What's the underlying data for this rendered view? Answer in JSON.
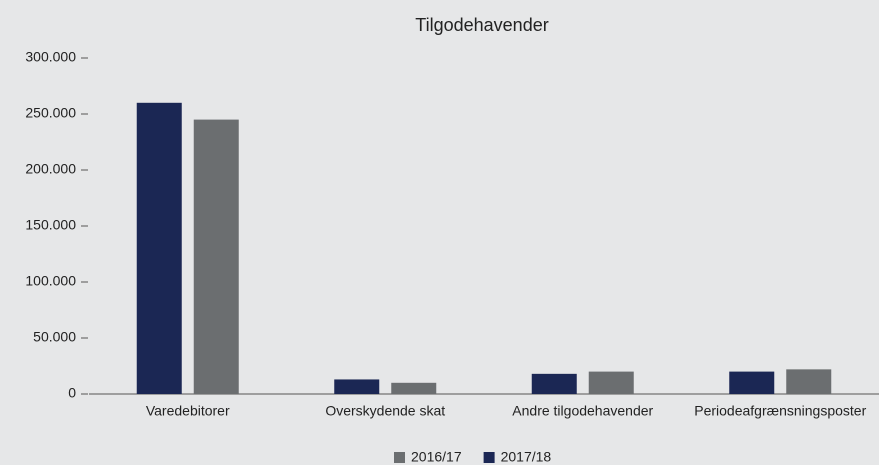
{
  "chart_data": {
    "type": "bar",
    "title": "Tilgodehavender",
    "categories": [
      "Varedebitorer",
      "Overskydende skat",
      "Andre tilgodehavender",
      "Periodeafgrænsningsposter"
    ],
    "series": [
      {
        "name": "2016/17",
        "color": "#6b6e70",
        "values": [
          245000,
          10000,
          20000,
          22000
        ]
      },
      {
        "name": "2017/18",
        "color": "#1b2754",
        "values": [
          260000,
          13000,
          18000,
          20000
        ]
      }
    ],
    "ylim": [
      0,
      300000
    ],
    "yticks": [
      0,
      {
        "value": 50000,
        "label": "50.000"
      },
      {
        "value": 100000,
        "label": "100.000"
      },
      {
        "value": 150000,
        "label": "150.000"
      },
      {
        "value": 200000,
        "label": "200.000"
      },
      {
        "value": 250000,
        "label": "250.000"
      },
      {
        "value": 300000,
        "label": "300.000"
      }
    ],
    "legend": "bottom"
  }
}
